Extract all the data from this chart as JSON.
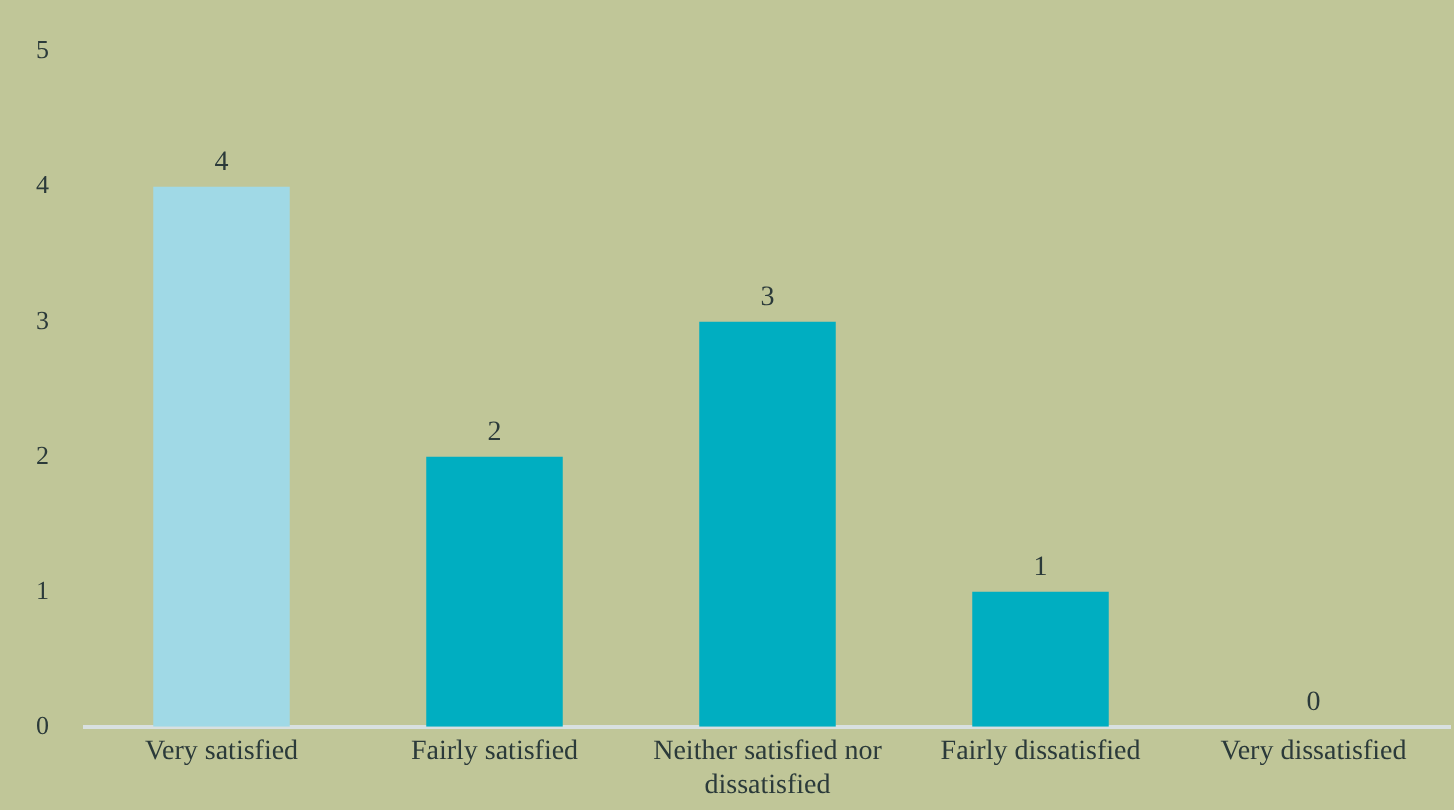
{
  "chart_data": {
    "type": "bar",
    "categories": [
      "Very satisfied",
      "Fairly satisfied",
      "Neither satisfied nor dissatisfied",
      "Fairly dissatisfied",
      "Very dissatisfied"
    ],
    "values": [
      4,
      2,
      3,
      1,
      0
    ],
    "colors": [
      "#a0d9e6",
      "#00aec1",
      "#00aec1",
      "#00aec1",
      "#00aec1"
    ],
    "ylim": [
      0,
      5
    ],
    "yticks": [
      0,
      1,
      2,
      3,
      4,
      5
    ],
    "grid": false,
    "legend": false,
    "data_labels": true
  }
}
